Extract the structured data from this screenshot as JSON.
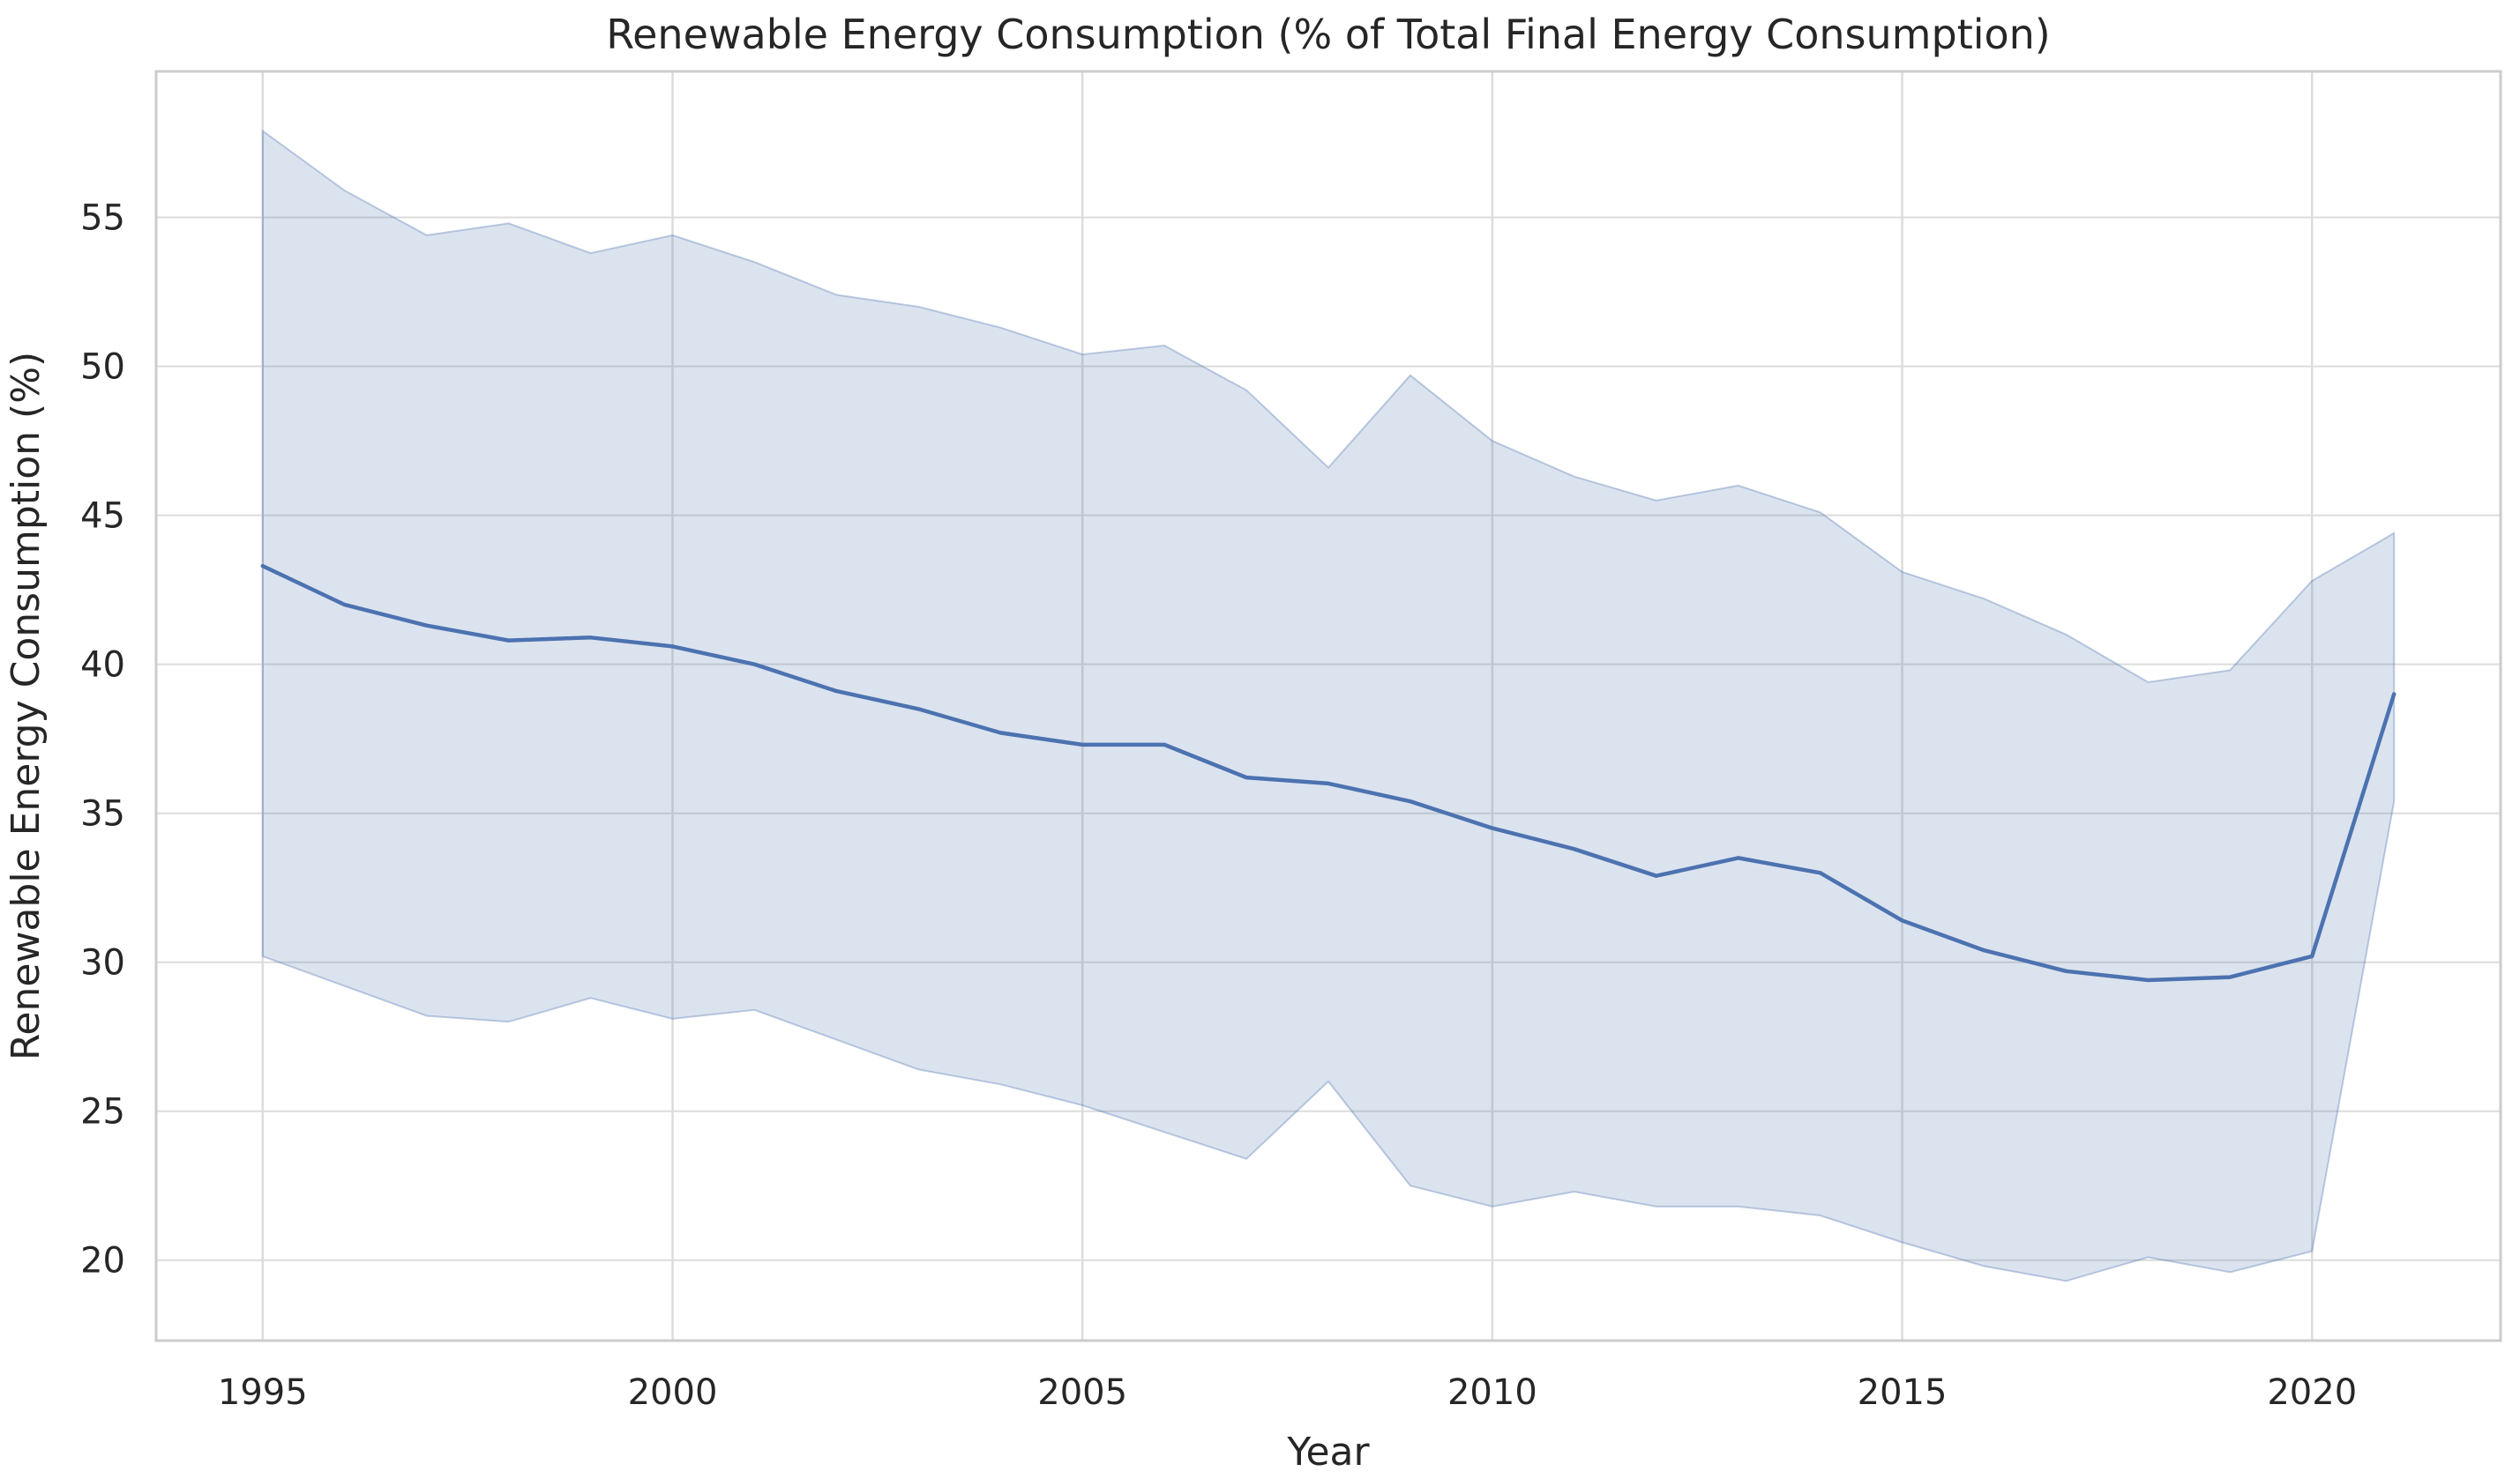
{
  "chart_data": {
    "type": "line",
    "title": "Renewable Energy Consumption (% of Total Final Energy Consumption)",
    "xlabel": "Year",
    "ylabel": "Renewable Energy Consumption (%)",
    "x": [
      1995,
      1996,
      1997,
      1998,
      1999,
      2000,
      2001,
      2002,
      2003,
      2004,
      2005,
      2006,
      2007,
      2008,
      2009,
      2010,
      2011,
      2012,
      2013,
      2014,
      2015,
      2016,
      2017,
      2018,
      2019,
      2020,
      2021
    ],
    "series": [
      {
        "name": "mean",
        "values": [
          43.3,
          42.0,
          41.3,
          40.8,
          40.9,
          40.6,
          40.0,
          39.1,
          38.5,
          37.7,
          37.3,
          37.3,
          36.2,
          36.0,
          35.4,
          34.5,
          33.8,
          32.9,
          33.5,
          33.0,
          31.4,
          30.4,
          29.7,
          29.4,
          29.5,
          30.2,
          39.0
        ]
      },
      {
        "name": "band_upper",
        "values": [
          57.9,
          55.9,
          54.4,
          54.8,
          53.8,
          54.4,
          53.5,
          52.4,
          52.0,
          51.3,
          50.4,
          50.7,
          49.2,
          46.6,
          49.7,
          47.5,
          46.3,
          45.5,
          46.0,
          45.1,
          43.1,
          42.2,
          41.0,
          39.4,
          39.8,
          42.8,
          44.4
        ]
      },
      {
        "name": "band_lower",
        "values": [
          30.2,
          29.2,
          28.2,
          28.0,
          28.8,
          28.1,
          28.4,
          27.4,
          26.4,
          25.9,
          25.2,
          24.3,
          23.4,
          26.0,
          22.5,
          21.8,
          22.3,
          21.8,
          21.8,
          21.5,
          20.6,
          19.8,
          19.3,
          20.1,
          19.6,
          20.3,
          35.4
        ]
      }
    ],
    "xticks": [
      1995,
      2000,
      2005,
      2010,
      2015,
      2020
    ],
    "yticks": [
      20,
      25,
      30,
      35,
      40,
      45,
      50,
      55
    ],
    "xlim": [
      1993.7,
      2022.3
    ],
    "ylim": [
      17.3,
      59.9
    ],
    "grid": true,
    "legend": "none",
    "colors": {
      "line": "#4c72b0",
      "band_fill": "#4c72b0",
      "band_fill_opacity": 0.2,
      "band_edge": "#4c72b0",
      "band_edge_opacity": 0.35,
      "band_resulting_hex": "#dbe3ef",
      "grid": "#dcdcdc",
      "spine": "#cccccc",
      "text": "#262626"
    }
  }
}
